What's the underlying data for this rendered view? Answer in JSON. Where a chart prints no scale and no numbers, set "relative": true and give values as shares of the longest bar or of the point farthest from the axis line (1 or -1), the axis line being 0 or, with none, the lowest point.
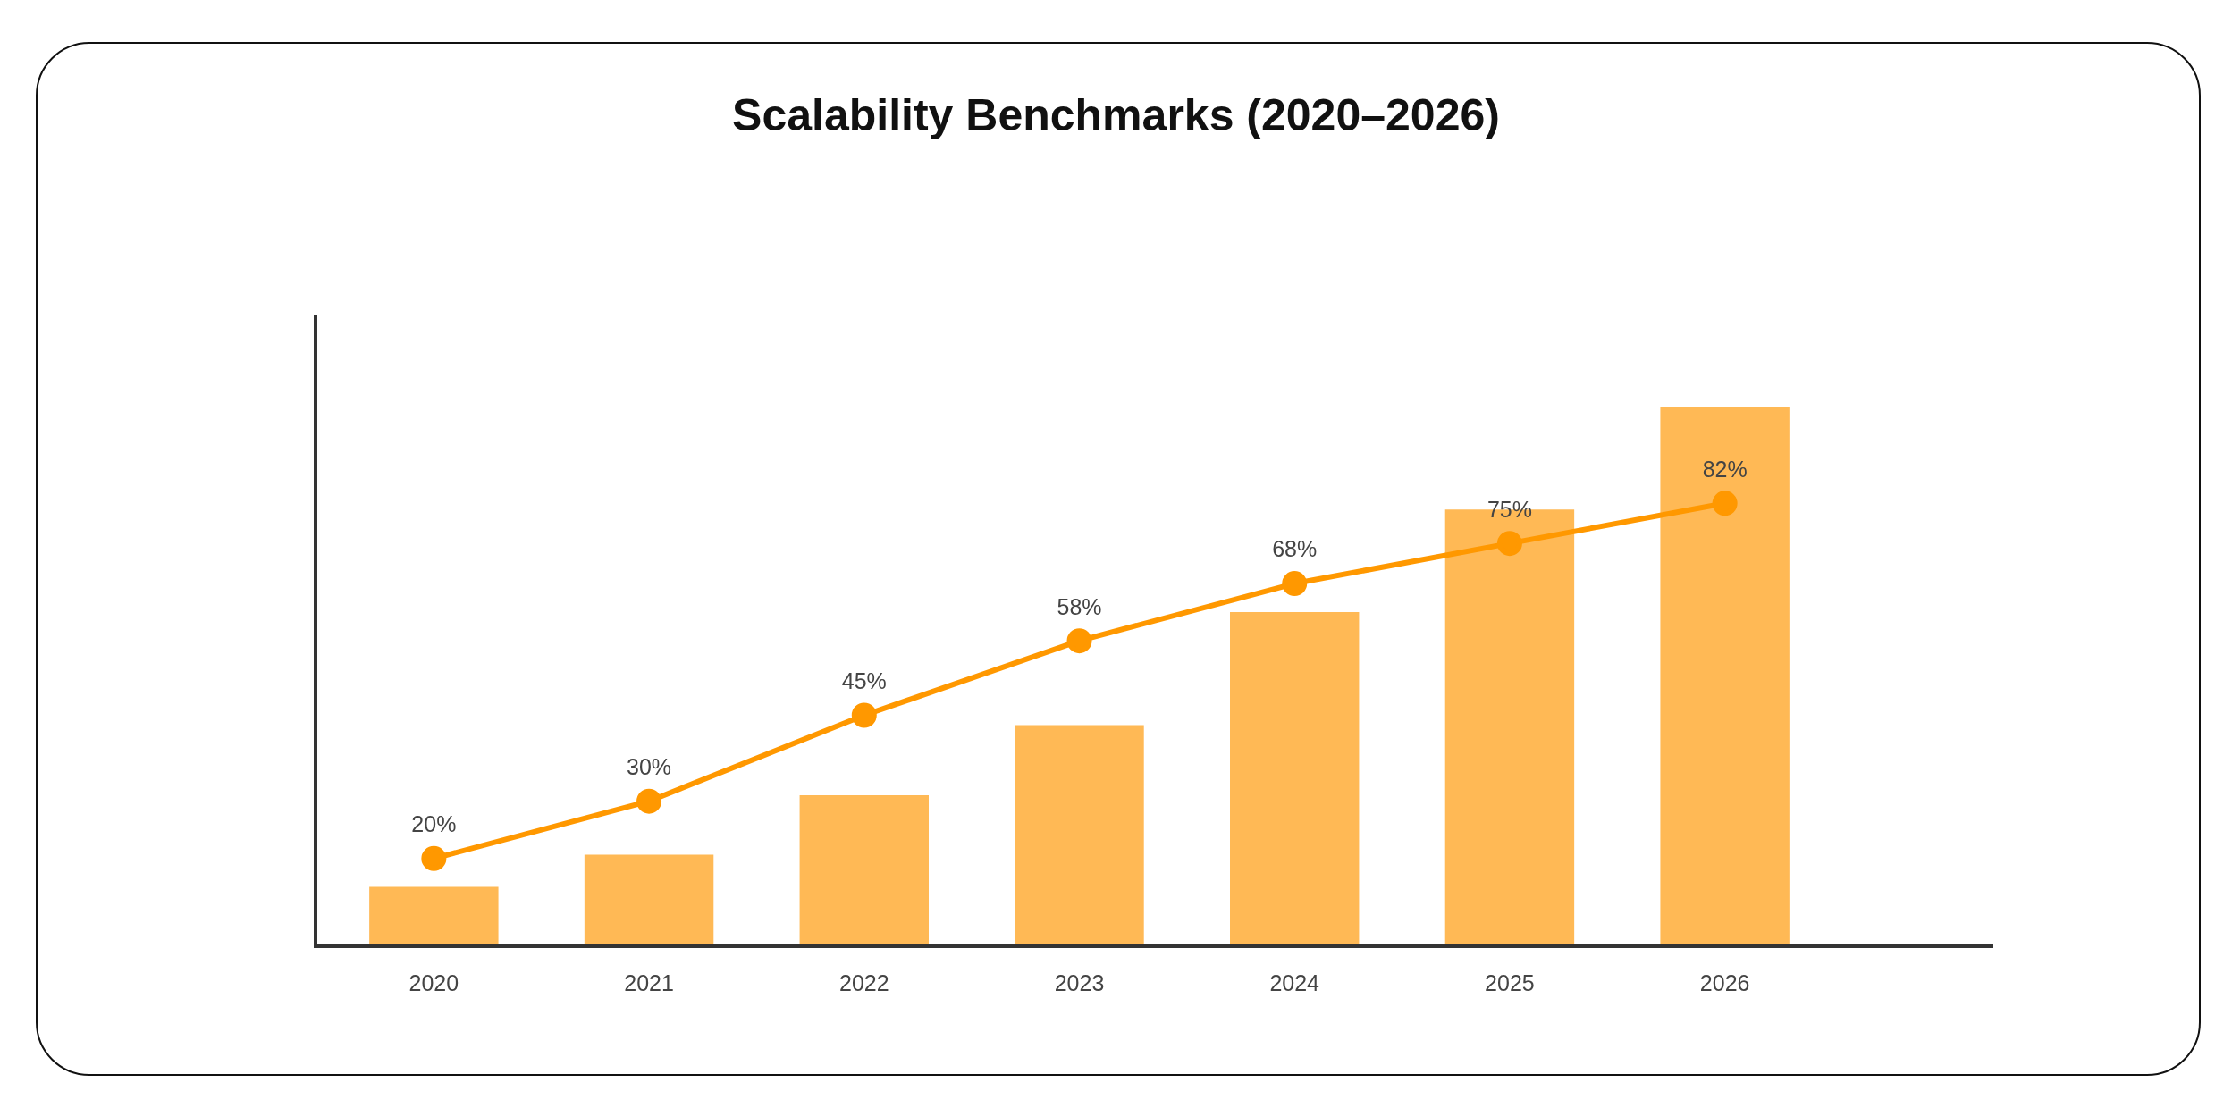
{
  "chart_data": [
    {
      "type": "bar",
      "title": "Scalability Benchmarks (2020–2026)",
      "categories": [
        "2020",
        "2021",
        "2022",
        "2023",
        "2024",
        "2025",
        "2026"
      ],
      "relative": true,
      "color": "#ffb955",
      "values": [
        0.11,
        0.17,
        0.28,
        0.41,
        0.62,
        0.81,
        1
      ]
    },
    {
      "type": "line",
      "categories": [
        "2020",
        "2021",
        "2022",
        "2023",
        "2024",
        "2025",
        "2026"
      ],
      "tick_labels": false,
      "marker": "circle",
      "color": "#ff9800",
      "values": [
        20,
        30,
        45,
        58,
        68,
        75,
        82
      ],
      "value_labels": [
        "20%",
        "30%",
        "45%",
        "58%",
        "68%",
        "75%",
        "82%"
      ]
    }
  ]
}
